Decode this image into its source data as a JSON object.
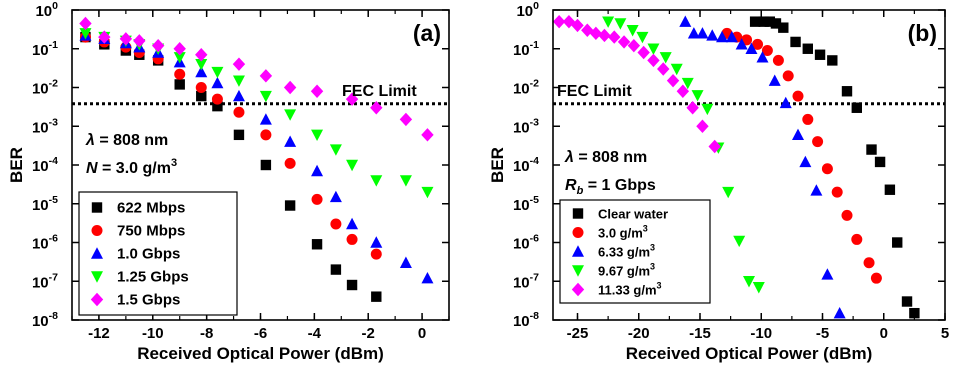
{
  "chart_data": [
    {
      "type": "scatter",
      "panel_label": "(a)",
      "xlabel": "Received Optical Power (dBm)",
      "ylabel": "BER",
      "xlim": [
        -13,
        1
      ],
      "ylim_exp": [
        -8,
        0
      ],
      "y_scale": "log",
      "x_ticks": [
        -12,
        -10,
        -8,
        -6,
        -4,
        -2,
        0
      ],
      "x_tick_labels": [
        "-12",
        "-10",
        "-8",
        "-6",
        "-4",
        "-2",
        "0"
      ],
      "y_tick_base": "10",
      "y_tick_exponents": [
        "0",
        "-1",
        "-2",
        "-3",
        "-4",
        "-5",
        "-6",
        "-7",
        "-8"
      ],
      "fec_label": "FEC Limit",
      "fec_value": 0.0038,
      "annotations": [
        {
          "prefix": "λ",
          "rest": " = 808 nm"
        },
        {
          "prefix": "N",
          "rest": " = 3.0 g/m",
          "sup": "3"
        }
      ],
      "legend": {
        "placement": "bottom-left"
      },
      "series": [
        {
          "name": "622 Mbps",
          "marker": "square",
          "color": "#000000",
          "x": [
            -12.5,
            -11.8,
            -11.0,
            -10.5,
            -9.8,
            -9.0,
            -8.2,
            -7.6,
            -6.8,
            -5.8,
            -4.9,
            -3.9,
            -3.2,
            -2.6,
            -1.7
          ],
          "y": [
            0.2,
            0.13,
            0.09,
            0.07,
            0.05,
            0.012,
            0.006,
            0.0033,
            0.0006,
            0.0001,
            9e-06,
            9e-07,
            2e-07,
            8e-08,
            4e-08
          ]
        },
        {
          "name": "750 Mbps",
          "marker": "circle",
          "color": "#ff0000",
          "x": [
            -12.5,
            -11.8,
            -11.0,
            -10.5,
            -9.8,
            -9.0,
            -8.2,
            -7.6,
            -6.8,
            -5.8,
            -4.9,
            -3.9,
            -3.2,
            -2.6,
            -1.7
          ],
          "y": [
            0.2,
            0.15,
            0.11,
            0.08,
            0.055,
            0.022,
            0.01,
            0.005,
            0.0023,
            0.0006,
            0.00011,
            1.3e-05,
            3e-06,
            1.2e-06,
            5e-07
          ]
        },
        {
          "name": "1.0 Gbps",
          "marker": "triangle-up",
          "color": "#0000ff",
          "x": [
            -12.5,
            -11.8,
            -11.0,
            -10.5,
            -9.8,
            -9.0,
            -8.2,
            -7.6,
            -6.8,
            -5.8,
            -4.9,
            -3.9,
            -3.2,
            -2.6,
            -1.7,
            -0.6,
            0.2
          ],
          "y": [
            0.22,
            0.18,
            0.14,
            0.11,
            0.08,
            0.045,
            0.025,
            0.013,
            0.006,
            0.0015,
            0.0004,
            7e-05,
            1.5e-05,
            3e-06,
            1e-06,
            3e-07,
            1.2e-07
          ]
        },
        {
          "name": "1.25 Gbps",
          "marker": "triangle-down",
          "color": "#00ff00",
          "x": [
            -12.5,
            -11.8,
            -11.0,
            -10.5,
            -9.8,
            -9.0,
            -8.2,
            -7.6,
            -6.8,
            -5.8,
            -4.9,
            -3.9,
            -3.2,
            -2.6,
            -1.7,
            -0.6,
            0.2
          ],
          "y": [
            0.25,
            0.2,
            0.16,
            0.13,
            0.1,
            0.06,
            0.04,
            0.025,
            0.015,
            0.006,
            0.002,
            0.0006,
            0.00025,
            0.0001,
            4e-05,
            4e-05,
            2e-05
          ]
        },
        {
          "name": "1.5 Gbps",
          "marker": "diamond",
          "color": "#ff00ff",
          "x": [
            -12.5,
            -11.8,
            -11.0,
            -10.5,
            -9.8,
            -9.0,
            -8.2,
            -6.8,
            -5.8,
            -4.9,
            -3.9,
            -2.6,
            -1.7,
            -0.6,
            0.2
          ],
          "y": [
            0.45,
            0.2,
            0.18,
            0.16,
            0.12,
            0.1,
            0.07,
            0.04,
            0.02,
            0.01,
            0.008,
            0.005,
            0.003,
            0.0015,
            0.0006
          ]
        }
      ]
    },
    {
      "type": "scatter",
      "panel_label": "(b)",
      "xlabel": "Received Optical Power (dBm)",
      "ylabel": "BER",
      "xlim": [
        -27,
        5
      ],
      "ylim_exp": [
        -8,
        0
      ],
      "y_scale": "log",
      "x_ticks": [
        -25,
        -20,
        -15,
        -10,
        -5,
        0,
        5
      ],
      "x_tick_labels": [
        "-25",
        "-20",
        "-15",
        "-10",
        "-5",
        "0",
        "5"
      ],
      "y_tick_base": "10",
      "y_tick_exponents": [
        "0",
        "-1",
        "-2",
        "-3",
        "-4",
        "-5",
        "-6",
        "-7",
        "-8"
      ],
      "fec_label": "FEC Limit",
      "fec_value": 0.0038,
      "annotations": [
        {
          "prefix": "λ",
          "rest": " = 808 nm"
        },
        {
          "prefix": "R",
          "sub": "b",
          "rest": " = 1 Gbps"
        }
      ],
      "legend": {
        "placement": "bottom-left"
      },
      "series": [
        {
          "name": "Clear water",
          "marker": "square",
          "color": "#000000",
          "x": [
            -10.5,
            -9.8,
            -9.3,
            -8.8,
            -8.2,
            -7.2,
            -6.2,
            -5.2,
            -4.2,
            -3.0,
            -2.2,
            -1.0,
            -0.3,
            0.5,
            1.1,
            1.9,
            2.5
          ],
          "y": [
            0.5,
            0.5,
            0.5,
            0.45,
            0.35,
            0.15,
            0.1,
            0.07,
            0.05,
            0.008,
            0.003,
            0.00025,
            0.00012,
            2.3e-05,
            1e-06,
            3e-08,
            1.5e-08
          ]
        },
        {
          "name": "3.0 g/m",
          "sup": "3",
          "marker": "circle",
          "color": "#ff0000",
          "x": [
            -12.8,
            -12.0,
            -11.2,
            -10.3,
            -9.5,
            -8.6,
            -7.8,
            -7.0,
            -6.2,
            -5.4,
            -4.6,
            -3.8,
            -3.0,
            -2.2,
            -1.2,
            -0.6
          ],
          "y": [
            0.25,
            0.2,
            0.17,
            0.13,
            0.09,
            0.05,
            0.02,
            0.006,
            0.0015,
            0.0004,
            8e-05,
            2e-05,
            5e-06,
            1.2e-06,
            3e-07,
            1.2e-07
          ]
        },
        {
          "name": "6.33 g/m",
          "sup": "3",
          "marker": "triangle-up",
          "color": "#0000ff",
          "x": [
            -16.2,
            -15.5,
            -14.8,
            -14.0,
            -13.2,
            -12.4,
            -11.6,
            -10.8,
            -9.9,
            -8.9,
            -8.0,
            -7.0,
            -6.4,
            -5.5,
            -4.6,
            -3.6
          ],
          "y": [
            0.5,
            0.25,
            0.25,
            0.22,
            0.2,
            0.2,
            0.13,
            0.1,
            0.06,
            0.015,
            0.004,
            0.0006,
            0.00012,
            2.2e-05,
            1.5e-07,
            1.5e-08
          ]
        },
        {
          "name": "9.67 g/m",
          "sup": "3",
          "marker": "triangle-down",
          "color": "#00ff00",
          "x": [
            -22.5,
            -21.5,
            -20.5,
            -19.7,
            -18.8,
            -17.8,
            -16.9,
            -16.0,
            -15.2,
            -14.4,
            -13.5,
            -12.7,
            -11.8,
            -11.0,
            -10.2
          ],
          "y": [
            0.5,
            0.45,
            0.3,
            0.2,
            0.1,
            0.06,
            0.03,
            0.013,
            0.0063,
            0.0028,
            0.00028,
            2e-05,
            1.1e-06,
            1e-07,
            7e-08
          ]
        },
        {
          "name": "11.33 g/m",
          "sup": "3",
          "marker": "diamond",
          "color": "#ff00ff",
          "x": [
            -26.5,
            -25.7,
            -25.0,
            -24.2,
            -23.5,
            -22.8,
            -22.0,
            -21.2,
            -20.4,
            -19.6,
            -18.8,
            -18.0,
            -17.2,
            -16.4,
            -15.6,
            -14.8,
            -13.8
          ],
          "y": [
            0.5,
            0.5,
            0.4,
            0.3,
            0.25,
            0.22,
            0.2,
            0.15,
            0.12,
            0.08,
            0.05,
            0.03,
            0.015,
            0.008,
            0.003,
            0.001,
            0.0003
          ]
        }
      ]
    }
  ]
}
